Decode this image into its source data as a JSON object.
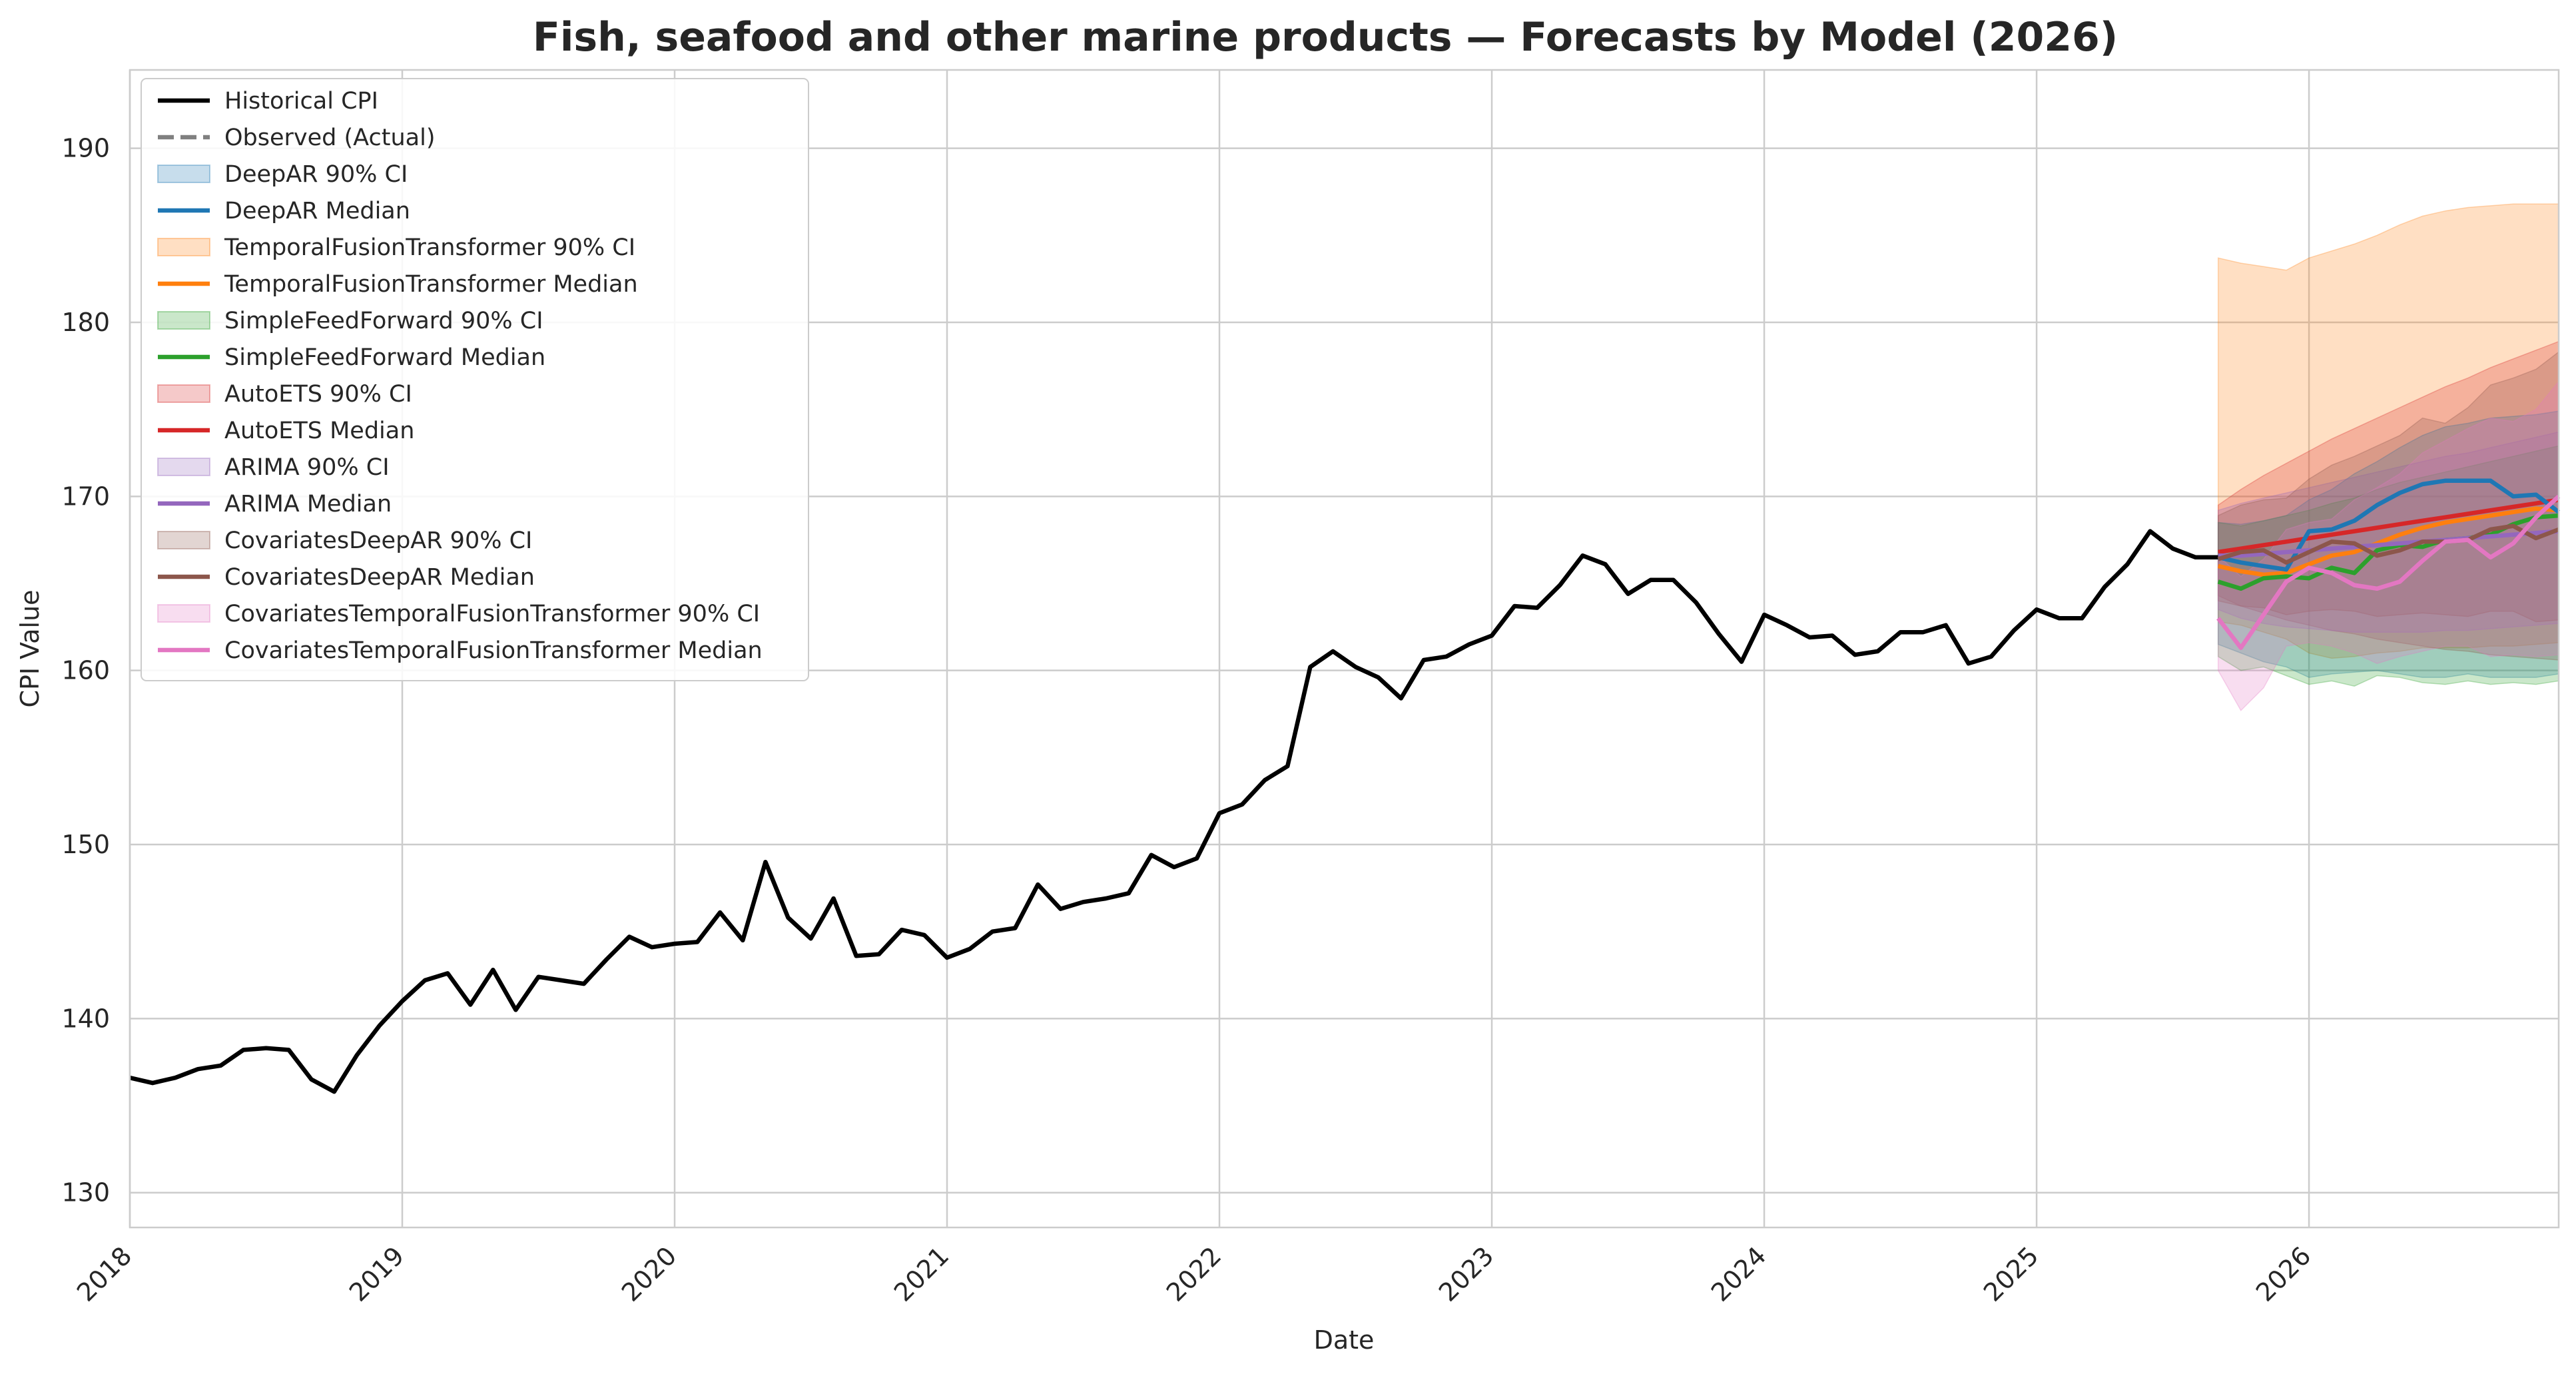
{
  "chart_data": {
    "type": "line",
    "title": "Fish, seafood and other marine products — Forecasts by Model (2026)",
    "xlabel": "Date",
    "ylabel": "CPI Value",
    "xlim": [
      "2018-01",
      "2026-12"
    ],
    "ylim": [
      128,
      194.5
    ],
    "x_ticks": [
      "2018",
      "2019",
      "2020",
      "2021",
      "2022",
      "2023",
      "2024",
      "2025",
      "2026"
    ],
    "y_ticks": [
      130,
      140,
      150,
      160,
      170,
      180,
      190
    ],
    "grid": true,
    "legend_position": "upper-left",
    "legend": [
      {
        "label": "Historical CPI",
        "kind": "line",
        "color": "#000000"
      },
      {
        "label": "Observed (Actual)",
        "kind": "dashed",
        "color": "#808080"
      },
      {
        "label": "DeepAR 90% CI",
        "kind": "band",
        "color": "#1f77b4"
      },
      {
        "label": "DeepAR Median",
        "kind": "line",
        "color": "#1f77b4"
      },
      {
        "label": "TemporalFusionTransformer 90% CI",
        "kind": "band",
        "color": "#ff7f0e"
      },
      {
        "label": "TemporalFusionTransformer Median",
        "kind": "line",
        "color": "#ff7f0e"
      },
      {
        "label": "SimpleFeedForward 90% CI",
        "kind": "band",
        "color": "#2ca02c"
      },
      {
        "label": "SimpleFeedForward Median",
        "kind": "line",
        "color": "#2ca02c"
      },
      {
        "label": "AutoETS 90% CI",
        "kind": "band",
        "color": "#d62728"
      },
      {
        "label": "AutoETS Median",
        "kind": "line",
        "color": "#d62728"
      },
      {
        "label": "ARIMA 90% CI",
        "kind": "band",
        "color": "#9467bd"
      },
      {
        "label": "ARIMA Median",
        "kind": "line",
        "color": "#9467bd"
      },
      {
        "label": "CovariatesDeepAR 90% CI",
        "kind": "band",
        "color": "#8c564b"
      },
      {
        "label": "CovariatesDeepAR Median",
        "kind": "line",
        "color": "#8c564b"
      },
      {
        "label": "CovariatesTemporalFusionTransformer 90% CI",
        "kind": "band",
        "color": "#e377c2"
      },
      {
        "label": "CovariatesTemporalFusionTransformer Median",
        "kind": "line",
        "color": "#e377c2"
      }
    ],
    "historical": {
      "name": "Historical CPI",
      "color": "#000000",
      "start": "2018-01",
      "values": [
        136.6,
        136.3,
        136.6,
        137.1,
        137.3,
        138.2,
        138.3,
        138.2,
        136.5,
        135.8,
        137.9,
        139.6,
        141.0,
        142.2,
        142.6,
        140.8,
        142.8,
        140.5,
        142.4,
        142.2,
        142.0,
        143.4,
        144.7,
        144.1,
        144.3,
        144.4,
        146.1,
        144.5,
        149.0,
        145.8,
        144.6,
        146.9,
        143.6,
        143.7,
        145.1,
        144.8,
        143.5,
        144.0,
        145.0,
        145.2,
        147.7,
        146.3,
        146.7,
        146.9,
        147.2,
        149.4,
        148.7,
        149.2,
        151.8,
        152.3,
        153.7,
        154.5,
        160.2,
        161.1,
        160.2,
        159.6,
        158.4,
        160.6,
        160.8,
        161.5,
        162.0,
        163.7,
        163.6,
        164.9,
        166.6,
        166.1,
        164.4,
        165.2,
        165.2,
        163.9,
        162.1,
        160.5,
        163.2,
        162.6,
        161.9,
        162.0,
        160.9,
        161.1,
        162.2,
        162.2,
        162.6,
        160.4,
        160.8,
        162.3,
        163.5,
        163.0,
        163.0,
        164.8,
        166.1,
        168.0,
        167.0,
        166.5,
        166.5
      ]
    },
    "forecast_start": "2025-09",
    "forecasts": [
      {
        "name": "TemporalFusionTransformer",
        "color": "#ff7f0e",
        "median": [
          166.0,
          165.7,
          165.5,
          165.6,
          166.1,
          166.6,
          166.8,
          167.3,
          167.8,
          168.2,
          168.5,
          168.7,
          168.9,
          169.1,
          169.3,
          169.2
        ],
        "lower": [
          162.8,
          162.6,
          162.2,
          161.8,
          161.0,
          160.7,
          160.8,
          161.0,
          161.1,
          161.3,
          161.3,
          161.3,
          161.4,
          161.4,
          161.5,
          161.6
        ],
        "upper": [
          183.7,
          183.4,
          183.2,
          183.0,
          183.7,
          184.1,
          184.5,
          185.0,
          185.6,
          186.1,
          186.4,
          186.6,
          186.7,
          186.8,
          186.8,
          186.8
        ]
      },
      {
        "name": "AutoETS",
        "color": "#d62728",
        "median": [
          166.8,
          167.0,
          167.2,
          167.4,
          167.6,
          167.8,
          168.0,
          168.2,
          168.4,
          168.6,
          168.8,
          169.0,
          169.2,
          169.4,
          169.6,
          169.8
        ],
        "lower": [
          164.3,
          163.7,
          163.3,
          162.9,
          162.6,
          162.3,
          162.1,
          161.8,
          161.6,
          161.4,
          161.2,
          161.1,
          160.9,
          160.8,
          160.7,
          160.6
        ],
        "upper": [
          169.5,
          170.4,
          171.2,
          171.9,
          172.6,
          173.3,
          173.9,
          174.5,
          175.1,
          175.7,
          176.3,
          176.8,
          177.4,
          177.9,
          178.4,
          178.9
        ]
      },
      {
        "name": "DeepAR",
        "color": "#1f77b4",
        "median": [
          166.5,
          166.2,
          166.0,
          165.8,
          168.0,
          168.1,
          168.6,
          169.5,
          170.2,
          170.7,
          170.9,
          170.9,
          170.9,
          170.0,
          170.1,
          169.1
        ],
        "lower": [
          161.5,
          161.0,
          160.5,
          160.2,
          159.6,
          159.8,
          159.9,
          160.0,
          159.8,
          159.6,
          159.6,
          159.8,
          159.6,
          159.6,
          159.6,
          159.8
        ],
        "upper": [
          168.5,
          168.4,
          168.6,
          168.9,
          169.8,
          170.4,
          171.3,
          172.0,
          172.8,
          173.5,
          174.0,
          174.2,
          174.5,
          174.6,
          174.7,
          174.9
        ]
      },
      {
        "name": "SimpleFeedForward",
        "color": "#2ca02c",
        "median": [
          165.1,
          164.7,
          165.3,
          165.4,
          165.3,
          165.9,
          165.6,
          166.9,
          167.2,
          167.1,
          167.5,
          167.6,
          167.8,
          168.4,
          168.8,
          168.9
        ],
        "lower": [
          160.8,
          160.0,
          160.2,
          159.7,
          159.2,
          159.4,
          159.1,
          159.7,
          159.6,
          159.3,
          159.2,
          159.4,
          159.2,
          159.3,
          159.2,
          159.4
        ],
        "upper": [
          168.5,
          168.3,
          168.6,
          168.9,
          169.2,
          169.6,
          169.9,
          170.4,
          170.8,
          171.1,
          171.4,
          171.7,
          172.0,
          172.3,
          172.6,
          172.9
        ]
      },
      {
        "name": "ARIMA",
        "color": "#9467bd",
        "median": [
          166.6,
          166.6,
          166.7,
          166.8,
          166.9,
          167.0,
          167.1,
          167.2,
          167.3,
          167.4,
          167.5,
          167.6,
          167.7,
          167.8,
          167.9,
          168.0
        ],
        "lower": [
          163.5,
          163.0,
          162.7,
          162.5,
          162.4,
          162.3,
          162.2,
          162.2,
          162.2,
          162.2,
          162.3,
          162.3,
          162.4,
          162.5,
          162.6,
          162.7
        ],
        "upper": [
          169.2,
          169.6,
          169.9,
          170.2,
          170.5,
          170.8,
          171.1,
          171.4,
          171.7,
          172.0,
          172.3,
          172.5,
          172.8,
          173.1,
          173.4,
          173.7
        ]
      },
      {
        "name": "CovariatesDeepAR",
        "color": "#8c564b",
        "median": [
          166.4,
          166.8,
          166.9,
          166.2,
          166.8,
          167.4,
          167.3,
          166.6,
          166.9,
          167.4,
          167.4,
          167.5,
          168.1,
          168.3,
          167.6,
          168.1
        ],
        "lower": [
          164.0,
          163.7,
          163.6,
          163.2,
          163.4,
          163.5,
          163.4,
          163.1,
          163.2,
          163.3,
          163.2,
          163.1,
          163.4,
          163.4,
          162.8,
          162.9
        ],
        "upper": [
          168.9,
          169.5,
          169.8,
          169.9,
          171.0,
          171.8,
          172.3,
          172.9,
          173.5,
          174.5,
          174.2,
          175.1,
          176.4,
          176.8,
          177.3,
          178.3
        ]
      },
      {
        "name": "CovariatesTemporalFusionTransformer",
        "color": "#e377c2",
        "median": [
          163.0,
          161.3,
          163.2,
          165.1,
          165.9,
          165.6,
          164.9,
          164.7,
          165.1,
          166.3,
          167.4,
          167.5,
          166.5,
          167.3,
          168.8,
          170.0
        ],
        "lower": [
          160.0,
          157.7,
          159.0,
          161.4,
          161.6,
          161.4,
          161.0,
          160.4,
          160.8,
          161.1,
          161.4,
          161.4,
          160.8,
          160.9,
          160.8,
          160.9
        ],
        "upper": [
          166.6,
          165.4,
          166.4,
          168.1,
          168.5,
          168.7,
          169.8,
          170.5,
          171.3,
          172.5,
          173.2,
          173.9,
          174.5,
          174.3,
          175.0,
          176.6
        ]
      }
    ]
  }
}
